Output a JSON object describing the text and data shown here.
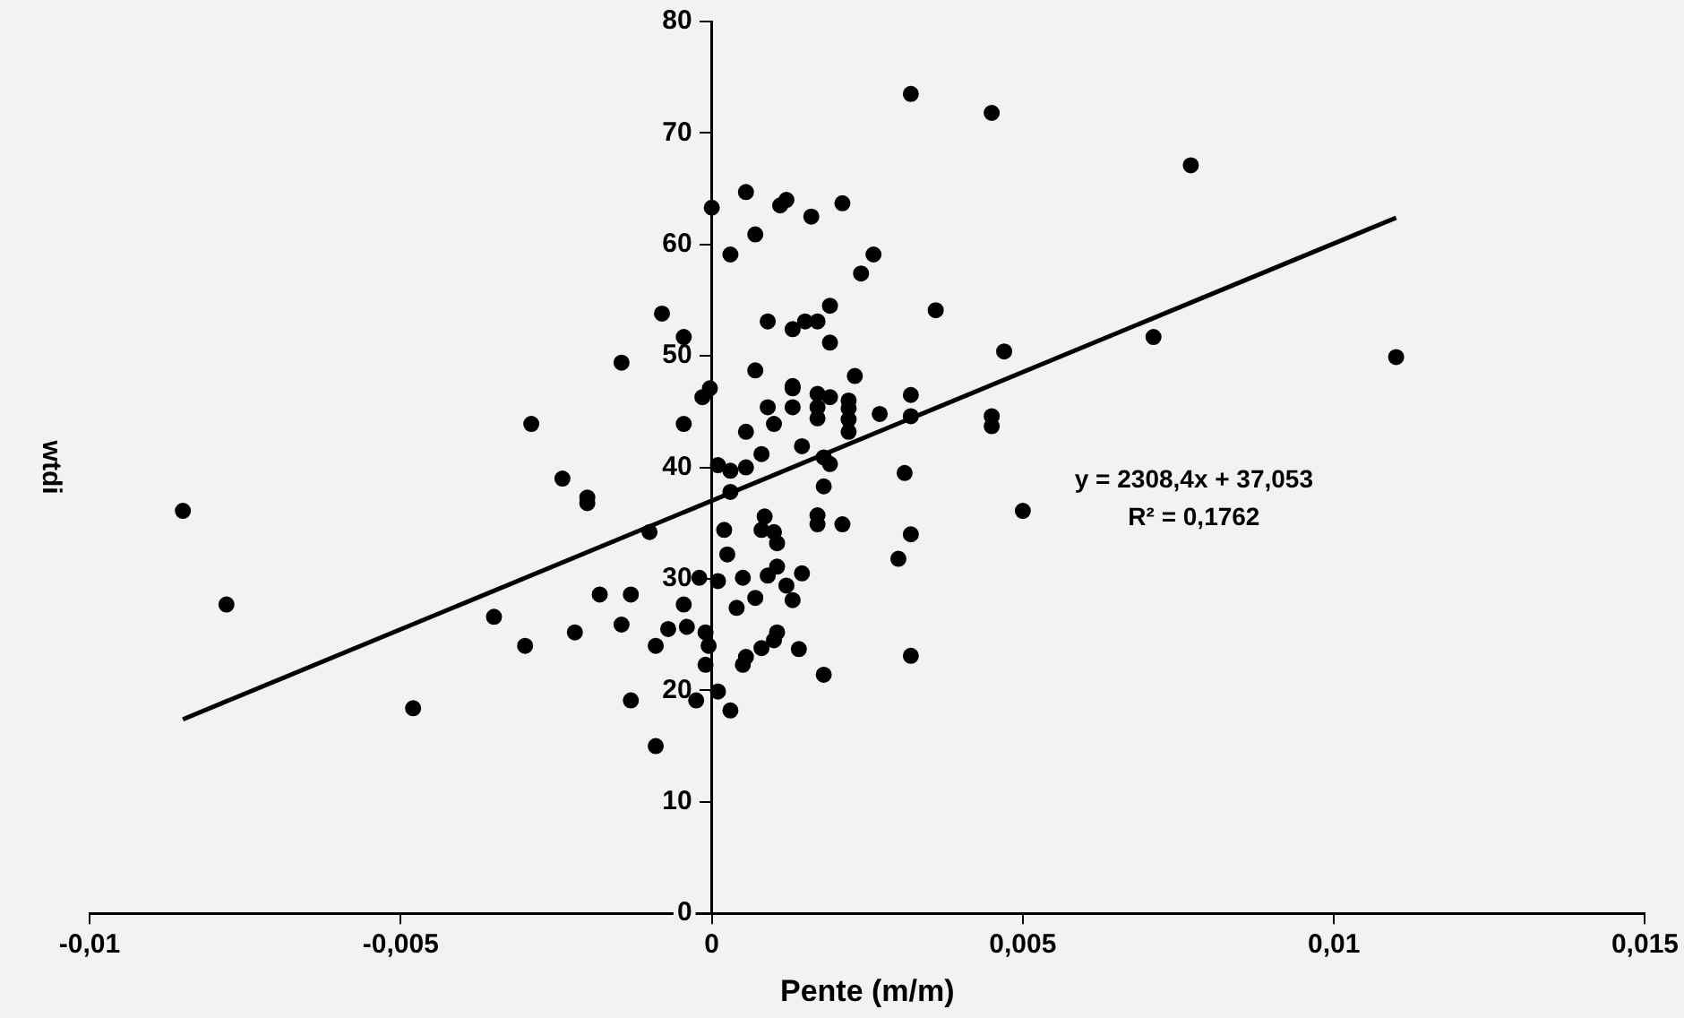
{
  "chart_data": {
    "type": "scatter",
    "xlabel": "Pente (m/m)",
    "ylabel": "wtdi",
    "xlim": [
      -0.01,
      0.015
    ],
    "ylim": [
      0,
      80
    ],
    "xticks": [
      {
        "value": -0.01,
        "label": "-0,01"
      },
      {
        "value": -0.005,
        "label": "-0,005"
      },
      0,
      {
        "value": 0.005,
        "label": "0,005"
      },
      {
        "value": 0.01,
        "label": "0,01"
      },
      {
        "value": 0.015,
        "label": "0,015"
      }
    ],
    "yticks": [
      0,
      10,
      20,
      30,
      40,
      50,
      60,
      70,
      80
    ],
    "grid": false,
    "legend": false,
    "marker": "circle",
    "annotations": [
      "y = 2308,4x + 37,053",
      "R² = 0,1762"
    ],
    "series": [
      {
        "color": "#000000",
        "x": [
          -0.0085,
          -0.0078,
          -0.0048,
          -0.0035,
          -0.003,
          -0.0029,
          -0.0024,
          -0.002,
          -0.002,
          -0.0022,
          -0.0018,
          -0.00145,
          -0.00145,
          -0.0013,
          -0.0013,
          -0.001,
          -0.0009,
          -0.0009,
          -0.0008,
          -0.0007,
          -0.00045,
          -0.00045,
          -0.00045,
          -0.0004,
          -0.00025,
          -0.0002,
          -0.0001,
          -0.0001,
          -5e-05,
          0,
          -3e-05,
          -0.00015,
          0.0001,
          0.0001,
          0.0001,
          0.0002,
          0.00025,
          0.0003,
          0.0003,
          0.0003,
          0.0003,
          0.0004,
          0.0005,
          0.0005,
          0.00055,
          0.00055,
          0.00055,
          0.00055,
          0.0007,
          0.0007,
          0.0007,
          0.0008,
          0.00085,
          0.0008,
          0.0009,
          0.0009,
          0.001,
          0.0008,
          0.0009,
          0.001,
          0.001,
          0.00105,
          0.00105,
          0.00105,
          0.0011,
          0.0012,
          0.0012,
          0.0013,
          0.0013,
          0.0013,
          0.0013,
          0.0013,
          0.00145,
          0.00145,
          0.0014,
          0.0015,
          0.0016,
          0.0017,
          0.0017,
          0.0017,
          0.0017,
          0.0017,
          0.0017,
          0.0018,
          0.0018,
          0.0018,
          0.0019,
          0.0019,
          0.0019,
          0.0019,
          0.0021,
          0.0021,
          0.0022,
          0.0022,
          0.0022,
          0.0022,
          0.0023,
          0.0024,
          0.0026,
          0.0027,
          0.003,
          0.0031,
          0.0032,
          0.0032,
          0.0032,
          0.0032,
          0.0032,
          0.0036,
          0.0045,
          0.0045,
          0.0045,
          0.0047,
          0.005,
          0.0071,
          0.0077,
          0.011
        ],
        "values": [
          36.1,
          27.7,
          18.4,
          26.6,
          24,
          43.9,
          39,
          37.3,
          36.8,
          25.2,
          28.6,
          49.4,
          25.9,
          28.6,
          19.1,
          34.2,
          15,
          24,
          53.8,
          25.5,
          51.7,
          43.9,
          27.7,
          25.7,
          19.1,
          30.1,
          25.2,
          22.3,
          24,
          63.3,
          47.1,
          46.3,
          40.2,
          29.8,
          19.9,
          34.4,
          32.2,
          39.7,
          37.8,
          18.2,
          59.1,
          27.4,
          22.3,
          30.1,
          64.7,
          43.2,
          40,
          23,
          60.9,
          48.7,
          28.3,
          41.2,
          35.6,
          34.4,
          53.1,
          45.4,
          24.5,
          23.8,
          30.3,
          43.9,
          34.2,
          33.2,
          31.1,
          25.2,
          63.5,
          64,
          29.4,
          52.4,
          47.3,
          47.1,
          28.1,
          45.4,
          41.9,
          30.5,
          23.7,
          53.1,
          62.5,
          53.1,
          44.4,
          35.7,
          34.9,
          45.4,
          46.6,
          21.4,
          40.9,
          38.3,
          51.2,
          54.5,
          40.3,
          46.3,
          34.9,
          63.7,
          46,
          45.3,
          44.3,
          43.2,
          48.2,
          57.4,
          59.1,
          44.8,
          31.8,
          39.5,
          73.5,
          46.5,
          44.6,
          34,
          23.1,
          54.1,
          44.6,
          43.7,
          71.8,
          50.4,
          36.1,
          51.7,
          67.1,
          49.9
        ]
      },
      {
        "type": "line",
        "color": "#000000",
        "marker": "none",
        "x": [
          -0.0085,
          0.011
        ],
        "values": [
          17.4,
          62.4
        ]
      }
    ]
  }
}
